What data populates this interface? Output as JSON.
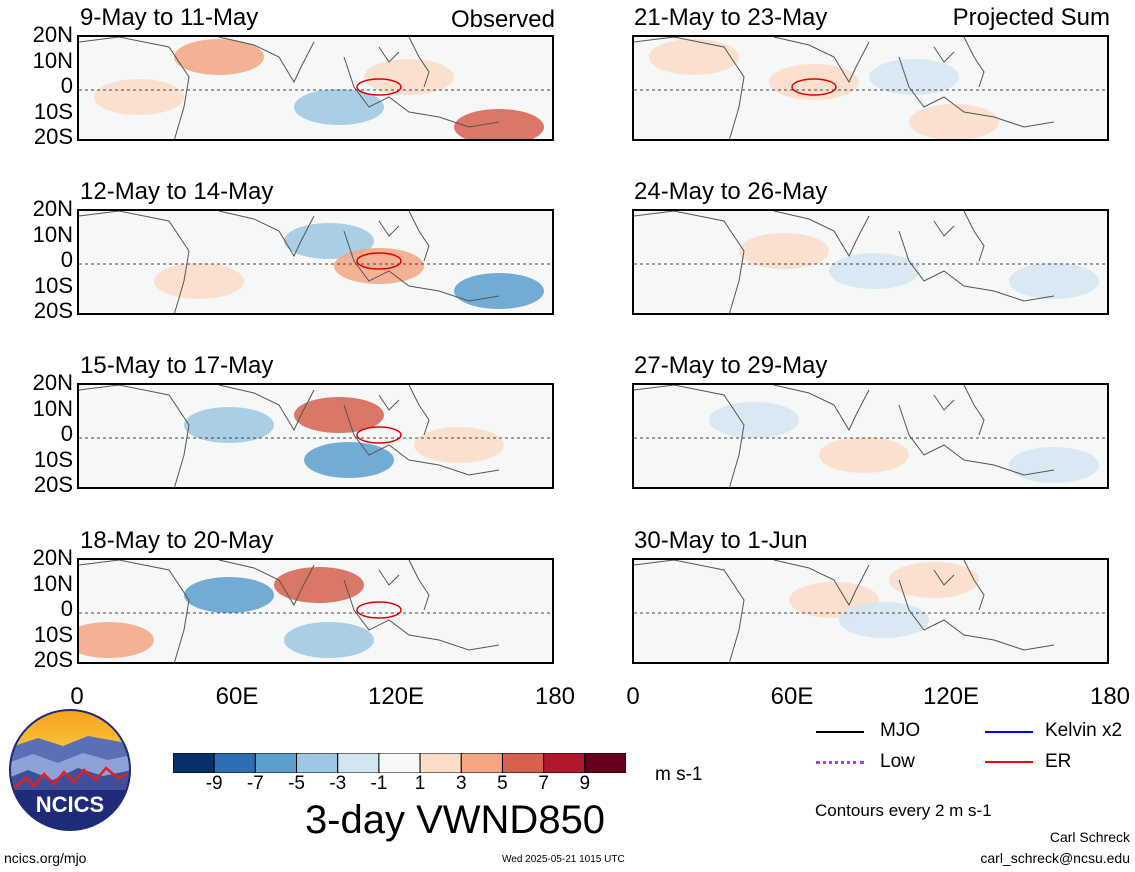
{
  "columns": {
    "observed": "Observed",
    "projected": "Projected Sum"
  },
  "panels_left": [
    "9-May to 11-May",
    "12-May to 14-May",
    "15-May to 17-May",
    "18-May to 20-May"
  ],
  "panels_right": [
    "21-May to 23-May",
    "24-May to 26-May",
    "27-May to 29-May",
    "30-May to 1-Jun"
  ],
  "lat_labels": [
    "20N",
    "10N",
    "0",
    "10S",
    "20S"
  ],
  "lon_labels": [
    "0",
    "60E",
    "120E",
    "180"
  ],
  "colorbar": {
    "ticks": [
      "-9",
      "-7",
      "-5",
      "-3",
      "-1",
      "1",
      "3",
      "5",
      "7",
      "9"
    ],
    "colors": [
      "#08306b",
      "#2c6fb5",
      "#5b9fcf",
      "#9cc7e3",
      "#d2e6f2",
      "#f7f9f9",
      "#fbdcc9",
      "#f4a582",
      "#d6604d",
      "#b2182b",
      "#67001f"
    ],
    "units": "m s-1"
  },
  "title": "3-day VWND850",
  "legend": {
    "mjo": "MJO",
    "kelvin": "Kelvin x2",
    "low": "Low",
    "er": "ER",
    "colors": {
      "mjo": "#000000",
      "kelvin": "#0000ff",
      "low": "#a040ff",
      "er": "#ff0000"
    }
  },
  "contours_note": "Contours every 2 m s-1",
  "logo_text": "NCICS",
  "footer": {
    "url": "ncics.org/mjo",
    "timestamp": "Wed 2025-05-21 1015 UTC",
    "author": "Carl Schreck",
    "email": "carl_schreck@ncsu.edu"
  }
}
